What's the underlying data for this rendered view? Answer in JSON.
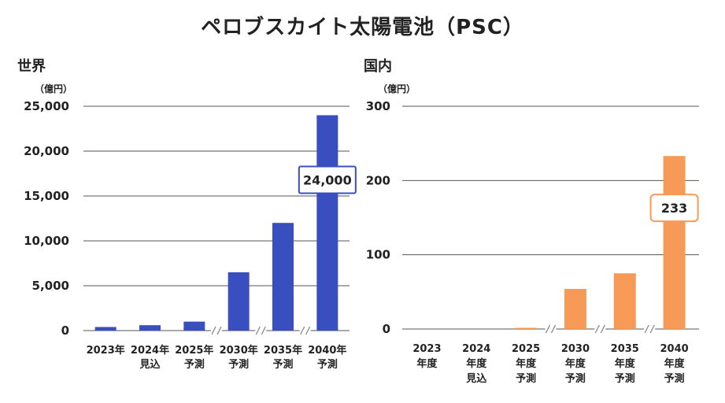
{
  "title": "ペロブスカイト太陽電池（PSC）",
  "colors": {
    "world": "#3a4fbf",
    "domestic": "#f79a57",
    "grid": "#555555",
    "break": "#888888"
  },
  "chart_data": [
    {
      "type": "bar",
      "panel_title": "世界",
      "unit_label": "（億円）",
      "ylim": [
        0,
        25000
      ],
      "yticks": [
        "0",
        "5,000",
        "10,000",
        "15,000",
        "20,000",
        "25,000"
      ],
      "categories": [
        [
          "2023年"
        ],
        [
          "2024年",
          "見込"
        ],
        [
          "2025年",
          "予測"
        ],
        [
          "2030年",
          "予測"
        ],
        [
          "2035年",
          "予測"
        ],
        [
          "2040年",
          "予測"
        ]
      ],
      "values": [
        400,
        600,
        1000,
        6500,
        12000,
        24000
      ],
      "axis_breaks_after_index": [
        2,
        3,
        4
      ],
      "callout": {
        "index": 5,
        "label": "24,000"
      }
    },
    {
      "type": "bar",
      "panel_title": "国内",
      "unit_label": "（億円）",
      "ylim": [
        0,
        300
      ],
      "yticks": [
        "0",
        "100",
        "200",
        "300"
      ],
      "categories": [
        [
          "2023",
          "年度"
        ],
        [
          "2024",
          "年度",
          "見込"
        ],
        [
          "2025",
          "年度",
          "予測"
        ],
        [
          "2030",
          "年度",
          "予測"
        ],
        [
          "2035",
          "年度",
          "予測"
        ],
        [
          "2040",
          "年度",
          "予測"
        ]
      ],
      "values": [
        0,
        0,
        1,
        54,
        75,
        233
      ],
      "axis_breaks_after_index": [
        2,
        3,
        4
      ],
      "callout": {
        "index": 5,
        "label": "233"
      }
    }
  ]
}
